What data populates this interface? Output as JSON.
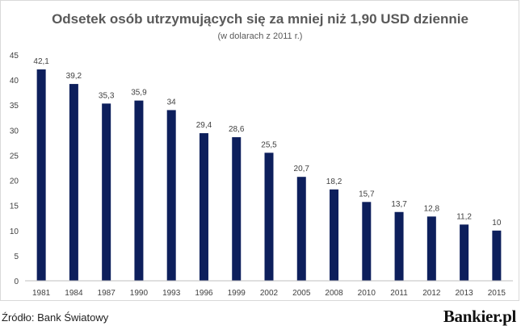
{
  "chart_data": {
    "type": "bar",
    "title": "Odsetek osób utrzymujących się za mniej niż 1,90 USD dziennie",
    "subtitle": "(w dolarach z 2011  r.)",
    "xlabel": "",
    "ylabel": "",
    "categories": [
      "1981",
      "1984",
      "1987",
      "1990",
      "1993",
      "1996",
      "1999",
      "2002",
      "2005",
      "2008",
      "2010",
      "2011",
      "2012",
      "2013",
      "2015"
    ],
    "values": [
      42.1,
      39.2,
      35.3,
      35.9,
      34,
      29.4,
      28.6,
      25.5,
      20.7,
      18.2,
      15.7,
      13.7,
      12.8,
      11.2,
      10
    ],
    "value_labels": [
      "42,1",
      "39,2",
      "35,3",
      "35,9",
      "34",
      "29,4",
      "28,6",
      "25,5",
      "20,7",
      "18,2",
      "15,7",
      "13,7",
      "12,8",
      "11,2",
      "10"
    ],
    "ylim": [
      0,
      45
    ],
    "yticks": [
      0,
      5,
      10,
      15,
      20,
      25,
      30,
      35,
      40,
      45
    ],
    "grid": false,
    "legend": "none",
    "bar_color": "#0d1f5c"
  },
  "footer": {
    "source": "Źródło: Bank Światowy",
    "logo_text": "Bankier.pl"
  }
}
